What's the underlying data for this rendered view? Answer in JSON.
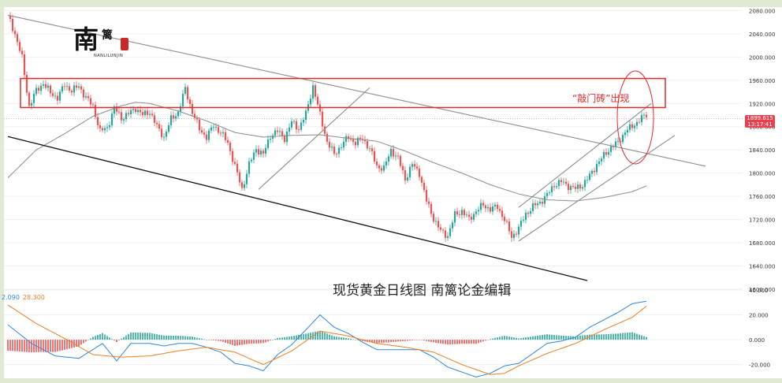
{
  "caption": "现货黄金日线图  南篱论金编辑",
  "annotation": "“敲门砖”出现",
  "logo": {
    "main": "南",
    "sub": "篱",
    "english": "NANLILUNJIN"
  },
  "price_tag": {
    "price": "1899.615",
    "countdown": "13:17:41"
  },
  "colors": {
    "up": "#26a69a",
    "down": "#ef5350",
    "macd_line": "#2e86de",
    "signal_line": "#ee7d22",
    "highlight": "#e02a2a"
  },
  "chart_data": [
    {
      "type": "candlestick",
      "title": "",
      "y_ticks": [
        "2080.000",
        "2040.000",
        "2000.000",
        "1960.000",
        "1920.000",
        "1880.000",
        "1840.000",
        "1800.000",
        "1760.000",
        "1720.000",
        "1680.000",
        "1640.000",
        "1600.000"
      ],
      "ylim": [
        1600,
        2086
      ],
      "last_price": 1899.615,
      "resistance_zone": [
        1913,
        1963
      ],
      "keypoints_close": [
        [
          0,
          2072
        ],
        [
          3,
          2040
        ],
        [
          6,
          1998
        ],
        [
          9,
          1915
        ],
        [
          12,
          1942
        ],
        [
          15,
          1955
        ],
        [
          18,
          1938
        ],
        [
          21,
          1930
        ],
        [
          24,
          1952
        ],
        [
          27,
          1942
        ],
        [
          30,
          1950
        ],
        [
          33,
          1930
        ],
        [
          36,
          1915
        ],
        [
          39,
          1872
        ],
        [
          42,
          1878
        ],
        [
          45,
          1912
        ],
        [
          48,
          1895
        ],
        [
          51,
          1902
        ],
        [
          54,
          1912
        ],
        [
          57,
          1900
        ],
        [
          60,
          1906
        ],
        [
          63,
          1880
        ],
        [
          66,
          1862
        ],
        [
          69,
          1893
        ],
        [
          72,
          1905
        ],
        [
          75,
          1945
        ],
        [
          78,
          1905
        ],
        [
          81,
          1876
        ],
        [
          84,
          1862
        ],
        [
          87,
          1882
        ],
        [
          90,
          1870
        ],
        [
          93,
          1852
        ],
        [
          96,
          1812
        ],
        [
          99,
          1772
        ],
        [
          102,
          1815
        ],
        [
          105,
          1842
        ],
        [
          108,
          1832
        ],
        [
          111,
          1865
        ],
        [
          114,
          1872
        ],
        [
          117,
          1860
        ],
        [
          120,
          1888
        ],
        [
          123,
          1877
        ],
        [
          126,
          1902
        ],
        [
          129,
          1950
        ],
        [
          132,
          1900
        ],
        [
          135,
          1854
        ],
        [
          138,
          1832
        ],
        [
          141,
          1848
        ],
        [
          144,
          1862
        ],
        [
          147,
          1852
        ],
        [
          150,
          1860
        ],
        [
          153,
          1842
        ],
        [
          156,
          1812
        ],
        [
          159,
          1808
        ],
        [
          162,
          1840
        ],
        [
          165,
          1825
        ],
        [
          168,
          1790
        ],
        [
          171,
          1815
        ],
        [
          174,
          1800
        ],
        [
          177,
          1752
        ],
        [
          180,
          1722
        ],
        [
          183,
          1700
        ],
        [
          186,
          1692
        ],
        [
          189,
          1728
        ],
        [
          192,
          1735
        ],
        [
          195,
          1720
        ],
        [
          198,
          1735
        ],
        [
          201,
          1745
        ],
        [
          204,
          1738
        ],
        [
          207,
          1742
        ],
        [
          210,
          1720
        ],
        [
          213,
          1690
        ],
        [
          216,
          1705
        ],
        [
          219,
          1730
        ],
        [
          222,
          1742
        ],
        [
          225,
          1750
        ],
        [
          228,
          1762
        ],
        [
          231,
          1780
        ],
        [
          234,
          1785
        ],
        [
          237,
          1778
        ],
        [
          240,
          1773
        ],
        [
          243,
          1780
        ],
        [
          246,
          1795
        ],
        [
          249,
          1815
        ],
        [
          252,
          1830
        ],
        [
          255,
          1845
        ],
        [
          258,
          1852
        ],
        [
          261,
          1872
        ],
        [
          264,
          1880
        ],
        [
          267,
          1892
        ],
        [
          270,
          1900
        ]
      ],
      "moving_average": [
        [
          0,
          1792
        ],
        [
          12,
          1840
        ],
        [
          24,
          1868
        ],
        [
          36,
          1898
        ],
        [
          48,
          1916
        ],
        [
          54,
          1922
        ],
        [
          60,
          1920
        ],
        [
          72,
          1907
        ],
        [
          84,
          1890
        ],
        [
          96,
          1870
        ],
        [
          108,
          1862
        ],
        [
          120,
          1865
        ],
        [
          132,
          1866
        ],
        [
          144,
          1860
        ],
        [
          156,
          1855
        ],
        [
          168,
          1838
        ],
        [
          180,
          1818
        ],
        [
          192,
          1800
        ],
        [
          204,
          1780
        ],
        [
          216,
          1764
        ],
        [
          228,
          1754
        ],
        [
          240,
          1752
        ],
        [
          252,
          1758
        ],
        [
          264,
          1768
        ],
        [
          270,
          1778
        ]
      ],
      "trendlines": [
        {
          "name": "descending-resistance",
          "points": [
            [
              0,
              2072
            ],
            [
              295,
              1812
            ]
          ]
        },
        {
          "name": "descending-support",
          "points": [
            [
              0,
              1863
            ],
            [
              245,
              1615
            ]
          ]
        },
        {
          "name": "rebound-channel",
          "points": [
            [
              106,
              1772
            ],
            [
              153,
              1947
            ]
          ]
        },
        {
          "name": "uptrend-lower",
          "points": [
            [
              216,
              1683
            ],
            [
              282,
              1865
            ]
          ]
        },
        {
          "name": "uptrend-upper",
          "points": [
            [
              216,
              1741
            ],
            [
              272,
              1920
            ]
          ]
        }
      ]
    },
    {
      "type": "macd",
      "indicator_values": [
        "2.090",
        "28.300"
      ],
      "y_ticks": [
        "40.000",
        "20.000",
        "0.000",
        "-20.000"
      ],
      "ylim": [
        -31,
        40
      ],
      "macd": [
        [
          0,
          12
        ],
        [
          10,
          -3
        ],
        [
          20,
          -13
        ],
        [
          30,
          -15
        ],
        [
          40,
          -3
        ],
        [
          46,
          -17
        ],
        [
          52,
          -3
        ],
        [
          60,
          -3
        ],
        [
          66,
          -5
        ],
        [
          72,
          -3
        ],
        [
          78,
          -3
        ],
        [
          84,
          -6
        ],
        [
          90,
          -10
        ],
        [
          96,
          -19
        ],
        [
          102,
          -21
        ],
        [
          108,
          -25
        ],
        [
          114,
          -12
        ],
        [
          120,
          -4
        ],
        [
          126,
          8
        ],
        [
          132,
          20
        ],
        [
          138,
          10
        ],
        [
          144,
          5
        ],
        [
          150,
          -2
        ],
        [
          156,
          -8
        ],
        [
          162,
          -8
        ],
        [
          168,
          -8
        ],
        [
          174,
          -8
        ],
        [
          180,
          -14
        ],
        [
          186,
          -22
        ],
        [
          192,
          -26
        ],
        [
          198,
          -30
        ],
        [
          204,
          -27
        ],
        [
          210,
          -21
        ],
        [
          216,
          -19
        ],
        [
          222,
          -11
        ],
        [
          228,
          -3
        ],
        [
          234,
          -1
        ],
        [
          240,
          2
        ],
        [
          246,
          10
        ],
        [
          252,
          16
        ],
        [
          258,
          22
        ],
        [
          264,
          29
        ],
        [
          270,
          31
        ]
      ],
      "signal": [
        [
          0,
          28
        ],
        [
          12,
          13
        ],
        [
          24,
          1
        ],
        [
          36,
          -12
        ],
        [
          48,
          -14
        ],
        [
          60,
          -13
        ],
        [
          72,
          -9
        ],
        [
          84,
          -6
        ],
        [
          96,
          -10
        ],
        [
          108,
          -20
        ],
        [
          120,
          -9
        ],
        [
          132,
          7
        ],
        [
          144,
          3
        ],
        [
          156,
          -3
        ],
        [
          168,
          -6
        ],
        [
          180,
          -10
        ],
        [
          192,
          -20
        ],
        [
          204,
          -28
        ],
        [
          210,
          -27
        ],
        [
          216,
          -21
        ],
        [
          228,
          -11
        ],
        [
          240,
          -3
        ],
        [
          252,
          8
        ],
        [
          264,
          18
        ],
        [
          270,
          27
        ]
      ]
    }
  ]
}
